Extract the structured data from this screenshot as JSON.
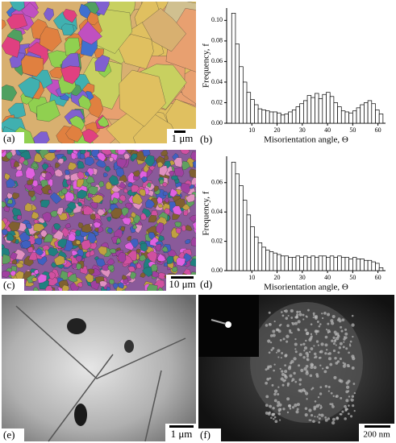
{
  "panels": [
    {
      "label": "(a)",
      "scale_bar": "1 μm"
    },
    {
      "label": "(b)"
    },
    {
      "label": "(c)",
      "scale_bar": "10 μm"
    },
    {
      "label": "(d)"
    },
    {
      "label": "(e)",
      "scale_bar": "1 μm"
    },
    {
      "label": "(f)",
      "scale_bar": "200 nm"
    }
  ],
  "chart_data": [
    {
      "type": "histogram",
      "xlabel": "Misorientation angle, Θ",
      "ylabel": "Frequency, f",
      "color": "#ffffff",
      "bins": [
        2,
        3.5,
        5,
        6.5,
        8,
        9.5,
        11,
        12.5,
        14,
        15.5,
        17,
        18.5,
        20,
        21.5,
        23,
        24.5,
        26,
        27.5,
        29,
        30.5,
        32,
        33.5,
        35,
        36.5,
        38,
        39.5,
        41,
        42.5,
        44,
        45.5,
        47,
        48.5,
        50,
        51.5,
        53,
        54.5,
        56,
        57.5,
        59,
        60.5,
        62
      ],
      "values": [
        0.107,
        0.077,
        0.055,
        0.04,
        0.03,
        0.023,
        0.018,
        0.014,
        0.013,
        0.012,
        0.011,
        0.011,
        0.01,
        0.008,
        0.009,
        0.011,
        0.013,
        0.016,
        0.019,
        0.022,
        0.027,
        0.025,
        0.029,
        0.024,
        0.028,
        0.03,
        0.026,
        0.02,
        0.016,
        0.012,
        0.011,
        0.01,
        0.012,
        0.015,
        0.018,
        0.02,
        0.022,
        0.019,
        0.013,
        0.009
      ],
      "xlim": [
        0,
        63
      ],
      "xticks": [
        10,
        20,
        30,
        40,
        50,
        60
      ],
      "ylim": [
        0,
        0.112
      ],
      "yticks": [
        {
          "value": 0,
          "label": "0.00"
        },
        {
          "value": 0.02,
          "label": "0.02"
        },
        {
          "value": 0.04,
          "label": "0.04"
        },
        {
          "value": 0.06,
          "label": "0.06"
        },
        {
          "value": 0.08,
          "label": "0.08"
        },
        {
          "value": 0.1,
          "label": "0.10"
        }
      ]
    },
    {
      "type": "histogram",
      "xlabel": "Misorientation angle, Θ",
      "ylabel": "Frequency, f",
      "color": "#ffffff",
      "bins": [
        2,
        3.5,
        5,
        6.5,
        8,
        9.5,
        11,
        12.5,
        14,
        15.5,
        17,
        18.5,
        20,
        21.5,
        23,
        24.5,
        26,
        27.5,
        29,
        30.5,
        32,
        33.5,
        35,
        36.5,
        38,
        39.5,
        41,
        42.5,
        44,
        45.5,
        47,
        48.5,
        50,
        51.5,
        53,
        54.5,
        56,
        57.5,
        59,
        60.5,
        62
      ],
      "values": [
        0.074,
        0.066,
        0.058,
        0.048,
        0.038,
        0.03,
        0.023,
        0.019,
        0.016,
        0.014,
        0.013,
        0.012,
        0.011,
        0.01,
        0.01,
        0.009,
        0.009,
        0.01,
        0.009,
        0.01,
        0.009,
        0.01,
        0.009,
        0.01,
        0.01,
        0.009,
        0.01,
        0.009,
        0.01,
        0.009,
        0.009,
        0.008,
        0.009,
        0.008,
        0.008,
        0.007,
        0.007,
        0.006,
        0.005,
        0.002
      ],
      "xlim": [
        0,
        63
      ],
      "xticks": [
        10,
        20,
        30,
        40,
        50,
        60
      ],
      "ylim": [
        0,
        0.078
      ],
      "yticks": [
        {
          "value": 0,
          "label": "0.00"
        },
        {
          "value": 0.02,
          "label": "0.02"
        },
        {
          "value": 0.04,
          "label": "0.04"
        },
        {
          "value": 0.06,
          "label": "0.06"
        }
      ]
    }
  ]
}
